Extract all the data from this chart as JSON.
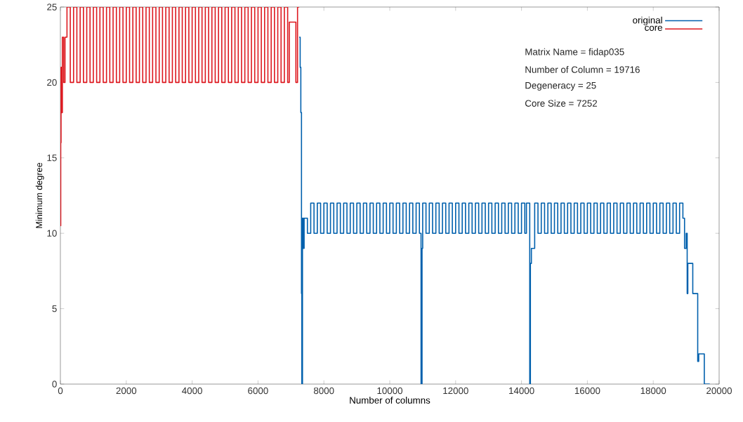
{
  "chart_data": {
    "type": "step",
    "xlabel": "Number of columns",
    "ylabel": "Minimum degree",
    "xlim": [
      0,
      20000
    ],
    "xticks": [
      0,
      2000,
      4000,
      6000,
      8000,
      10000,
      12000,
      14000,
      16000,
      18000,
      20000
    ],
    "ylim": [
      0,
      25
    ],
    "yticks": [
      0,
      5,
      10,
      15,
      20,
      25
    ],
    "legend": "top right",
    "annotations": [
      "Matrix Name = fidap035",
      "Number of Column = 19716",
      "Degeneracy = 25",
      "Core Size = 7252"
    ],
    "series": [
      {
        "name": "original",
        "color": "#0060ad",
        "x": [
          7250,
          7280,
          7300,
          7320,
          7330,
          7350,
          7380,
          7400,
          7500,
          7600,
          7700,
          7800,
          7900,
          8000,
          8100,
          8200,
          8300,
          8400,
          8500,
          8600,
          8700,
          8800,
          8900,
          9000,
          9100,
          9200,
          9300,
          9400,
          9500,
          9600,
          9700,
          9800,
          9900,
          10000,
          10100,
          10200,
          10300,
          10400,
          10500,
          10600,
          10700,
          10800,
          10900,
          10950,
          10980,
          11000,
          11100,
          11200,
          11300,
          11400,
          11500,
          11600,
          11700,
          11800,
          11900,
          12000,
          12100,
          12200,
          12300,
          12400,
          12500,
          12600,
          12700,
          12800,
          12900,
          13000,
          13100,
          13200,
          13300,
          13400,
          13500,
          13600,
          13700,
          13800,
          13900,
          14000,
          14100,
          14150,
          14250,
          14270,
          14300,
          14400,
          14500,
          14600,
          14700,
          14800,
          14900,
          15000,
          15100,
          15200,
          15300,
          15400,
          15500,
          15600,
          15700,
          15800,
          15900,
          16000,
          16100,
          16200,
          16300,
          16400,
          16500,
          16600,
          16700,
          16800,
          16900,
          17000,
          17100,
          17200,
          17300,
          17400,
          17500,
          17600,
          17700,
          17800,
          17900,
          18000,
          18100,
          18200,
          18300,
          18400,
          18500,
          18600,
          18700,
          18800,
          18900,
          18950,
          19000,
          19030,
          19050,
          19200,
          19350,
          19380,
          19550,
          19716
        ],
        "values": [
          23,
          21,
          18,
          6,
          0,
          11,
          9,
          11,
          10,
          12,
          10,
          12,
          10,
          12,
          10,
          12,
          10,
          12,
          10,
          12,
          10,
          12,
          10,
          12,
          10,
          12,
          10,
          12,
          10,
          12,
          10,
          12,
          10,
          12,
          10,
          12,
          10,
          12,
          10,
          12,
          10,
          12,
          10,
          0,
          9,
          12,
          10,
          12,
          10,
          12,
          10,
          12,
          10,
          12,
          10,
          12,
          10,
          12,
          10,
          12,
          10,
          12,
          10,
          12,
          10,
          12,
          10,
          12,
          10,
          12,
          10,
          12,
          10,
          12,
          10,
          12,
          10,
          12,
          0,
          8,
          9,
          12,
          10,
          12,
          10,
          12,
          10,
          12,
          10,
          12,
          10,
          12,
          10,
          12,
          10,
          12,
          10,
          12,
          10,
          12,
          10,
          12,
          10,
          12,
          10,
          12,
          10,
          12,
          10,
          12,
          10,
          12,
          10,
          12,
          10,
          12,
          10,
          12,
          10,
          12,
          10,
          12,
          10,
          12,
          10,
          12,
          11,
          9,
          10,
          6,
          8,
          6,
          1.5,
          2,
          0,
          0
        ]
      },
      {
        "name": "core",
        "color": "#dd181f",
        "x": [
          0,
          10,
          20,
          40,
          60,
          100,
          140,
          200,
          300,
          400,
          500,
          600,
          700,
          800,
          900,
          1000,
          1100,
          1200,
          1300,
          1400,
          1500,
          1600,
          1700,
          1800,
          1900,
          2000,
          2100,
          2200,
          2300,
          2400,
          2500,
          2600,
          2700,
          2800,
          2900,
          3000,
          3100,
          3200,
          3300,
          3400,
          3500,
          3600,
          3700,
          3800,
          3900,
          4000,
          4100,
          4200,
          4300,
          4400,
          4500,
          4600,
          4700,
          4800,
          4900,
          5000,
          5100,
          5200,
          5300,
          5400,
          5500,
          5600,
          5700,
          5800,
          5900,
          6000,
          6100,
          6200,
          6300,
          6400,
          6500,
          6600,
          6700,
          6800,
          6900,
          6950,
          7150,
          7200,
          7252
        ],
        "values": [
          10.5,
          16,
          21,
          18,
          23,
          20,
          23,
          25,
          20,
          25,
          20,
          25,
          20,
          25,
          20,
          25,
          20,
          25,
          20,
          25,
          20,
          25,
          20,
          25,
          20,
          25,
          20,
          25,
          20,
          25,
          20,
          25,
          20,
          25,
          20,
          25,
          20,
          25,
          20,
          25,
          20,
          25,
          20,
          25,
          20,
          25,
          20,
          25,
          20,
          25,
          20,
          25,
          20,
          25,
          20,
          25,
          20,
          25,
          20,
          25,
          20,
          25,
          20,
          25,
          20,
          25,
          20,
          25,
          20,
          25,
          20,
          25,
          20,
          25,
          20,
          24,
          20,
          25,
          25
        ]
      }
    ]
  }
}
